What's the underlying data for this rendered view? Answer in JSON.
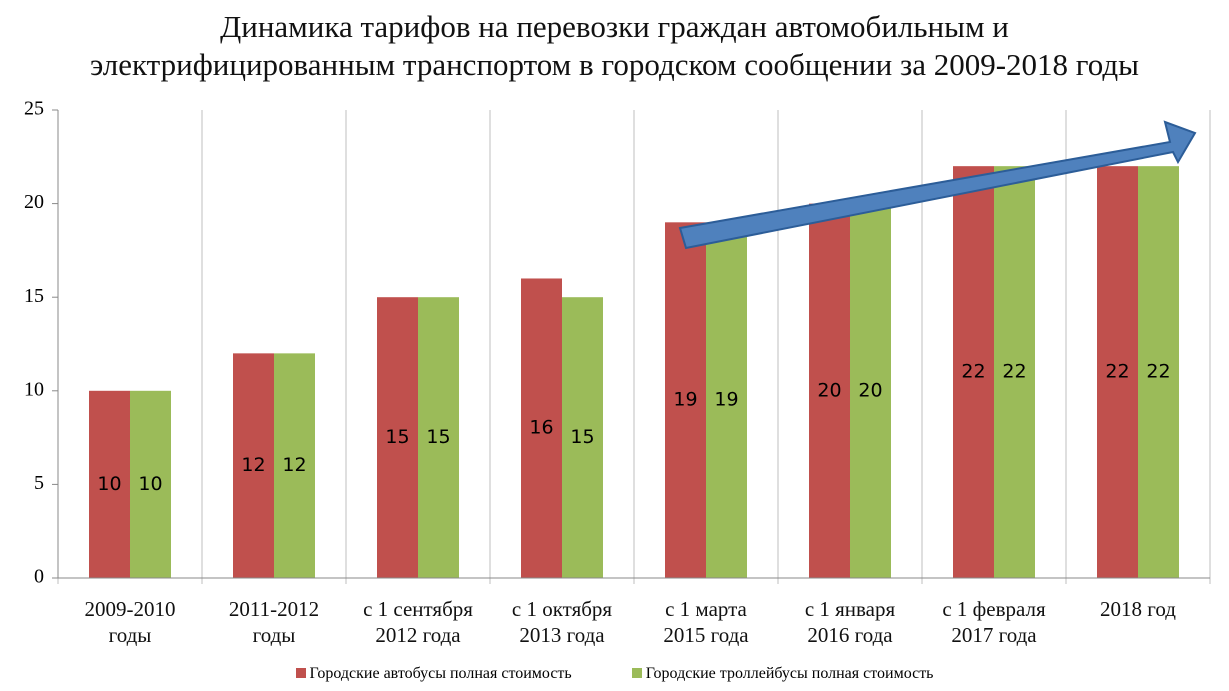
{
  "chart_data": {
    "type": "bar",
    "title": "Динамика тарифов на перевозки граждан автомобильным и\nэлектрифицированным транспортом в городском сообщении за 2009-2018 годы",
    "categories": [
      "2009-2010\nгоды",
      "2011-2012\nгоды",
      "с 1 сентября\n2012 года",
      "с 1 октября\n2013 года",
      "с 1 марта\n2015 года",
      "с 1 января\n2016 года",
      "с 1 февраля\n2017 года",
      "2018 год"
    ],
    "series": [
      {
        "name": "Городские автобусы полная стоимость",
        "color": "#c0504d",
        "values": [
          10,
          12,
          15,
          16,
          19,
          20,
          22,
          22
        ]
      },
      {
        "name": "Городские троллейбусы полная стоимость",
        "color": "#9bbb59",
        "values": [
          10,
          12,
          15,
          15,
          19,
          20,
          22,
          22
        ]
      }
    ],
    "ylim": [
      0,
      25
    ],
    "yticks": [
      0,
      5,
      10,
      15,
      20,
      25
    ],
    "legend": "bottom"
  }
}
